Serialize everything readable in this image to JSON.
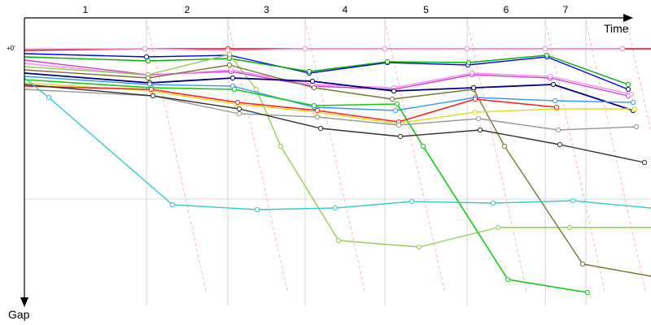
{
  "chart_data": {
    "type": "line",
    "x_label": "Time",
    "y_label": "Gap",
    "reference_label": "+0'",
    "laps": [
      "1",
      "2",
      "3",
      "4",
      "5",
      "6",
      "7"
    ],
    "lap_line_times": [
      180,
      280,
      375,
      473,
      574,
      670,
      720
    ],
    "timing_line_slope": 0.22,
    "timing_line_color": "#f7b3b3",
    "grid_color": "#cccccc",
    "y_gridline": 245,
    "x_range": [
      0,
      800
    ],
    "y_range": [
      0,
      400
    ],
    "series": [
      {
        "color": "#ff0000",
        "width": 1.6,
        "points": [
          [
            30,
            62
          ],
          [
            178,
            60
          ],
          [
            280,
            60
          ],
          [
            375,
            60
          ],
          [
            473,
            60
          ],
          [
            574,
            60
          ],
          [
            670,
            60
          ],
          [
            765,
            60
          ],
          [
            800,
            60
          ]
        ]
      },
      {
        "color": "#ff99dd",
        "width": 1.4,
        "points": [
          [
            30,
            60
          ],
          [
            178,
            60
          ],
          [
            280,
            62
          ],
          [
            375,
            60
          ],
          [
            473,
            60
          ],
          [
            574,
            60
          ],
          [
            670,
            60
          ],
          [
            765,
            60
          ]
        ]
      },
      {
        "color": "#0000ff",
        "width": 1.4,
        "points": [
          [
            30,
            66
          ],
          [
            180,
            70
          ],
          [
            282,
            68
          ],
          [
            380,
            90
          ],
          [
            476,
            77
          ],
          [
            575,
            80
          ],
          [
            672,
            70
          ],
          [
            772,
            110
          ]
        ]
      },
      {
        "color": "#00b000",
        "width": 1.4,
        "points": [
          [
            30,
            70
          ],
          [
            182,
            75
          ],
          [
            282,
            72
          ],
          [
            380,
            88
          ],
          [
            476,
            76
          ],
          [
            576,
            77
          ],
          [
            672,
            68
          ],
          [
            772,
            104
          ]
        ]
      },
      {
        "color": "#cc44cc",
        "width": 1.4,
        "points": [
          [
            30,
            74
          ],
          [
            182,
            92
          ],
          [
            284,
            88
          ],
          [
            384,
            106
          ],
          [
            484,
            110
          ],
          [
            580,
            92
          ],
          [
            676,
            96
          ],
          [
            772,
            118
          ]
        ]
      },
      {
        "color": "#ff88ff",
        "width": 1.4,
        "points": [
          [
            30,
            78
          ],
          [
            182,
            93
          ],
          [
            284,
            86
          ],
          [
            384,
            104
          ],
          [
            484,
            108
          ],
          [
            580,
            90
          ],
          [
            676,
            94
          ],
          [
            776,
            116
          ]
        ]
      },
      {
        "color": "#99cc55",
        "width": 1.4,
        "points": [
          [
            30,
            82
          ],
          [
            182,
            92
          ],
          [
            282,
            67
          ],
          [
            315,
            110
          ],
          [
            345,
            180
          ],
          [
            416,
            296
          ],
          [
            515,
            304
          ],
          [
            612,
            280
          ],
          [
            700,
            280
          ],
          [
            800,
            280
          ]
        ]
      },
      {
        "color": "#777733",
        "width": 1.4,
        "points": [
          [
            30,
            86
          ],
          [
            182,
            96
          ],
          [
            282,
            80
          ],
          [
            386,
            108
          ],
          [
            482,
            122
          ],
          [
            582,
            110
          ],
          [
            620,
            180
          ],
          [
            716,
            325
          ],
          [
            800,
            340
          ]
        ]
      },
      {
        "color": "#000080",
        "width": 1.8,
        "points": [
          [
            30,
            90
          ],
          [
            184,
            102
          ],
          [
            286,
            96
          ],
          [
            384,
            100
          ],
          [
            484,
            112
          ],
          [
            582,
            108
          ],
          [
            680,
            104
          ],
          [
            778,
            136
          ]
        ]
      },
      {
        "color": "#3399ff",
        "width": 1.4,
        "points": [
          [
            30,
            94
          ],
          [
            184,
            104
          ],
          [
            286,
            106
          ],
          [
            386,
            132
          ],
          [
            486,
            136
          ],
          [
            584,
            120
          ],
          [
            682,
            124
          ],
          [
            778,
            126
          ]
        ]
      },
      {
        "color": "#11cc11",
        "width": 1.6,
        "points": [
          [
            30,
            98
          ],
          [
            186,
            108
          ],
          [
            288,
            110
          ],
          [
            386,
            130
          ],
          [
            488,
            128
          ],
          [
            520,
            180
          ],
          [
            624,
            344
          ],
          [
            722,
            360
          ]
        ]
      },
      {
        "color": "#dddd22",
        "width": 1.4,
        "points": [
          [
            30,
            102
          ],
          [
            186,
            112
          ],
          [
            290,
            128
          ],
          [
            388,
            138
          ],
          [
            488,
            152
          ],
          [
            584,
            138
          ],
          [
            684,
            134
          ],
          [
            780,
            134
          ]
        ]
      },
      {
        "color": "#ff2222",
        "width": 1.6,
        "points": [
          [
            30,
            106
          ],
          [
            186,
            110
          ],
          [
            292,
            126
          ],
          [
            390,
            136
          ],
          [
            490,
            150
          ],
          [
            584,
            122
          ],
          [
            684,
            132
          ]
        ]
      },
      {
        "color": "#999999",
        "width": 1.4,
        "points": [
          [
            30,
            110
          ],
          [
            188,
            118
          ],
          [
            294,
            140
          ],
          [
            390,
            144
          ],
          [
            490,
            154
          ],
          [
            588,
            146
          ],
          [
            686,
            160
          ],
          [
            782,
            156
          ]
        ]
      },
      {
        "color": "#333333",
        "width": 1.4,
        "points": [
          [
            30,
            104
          ],
          [
            188,
            118
          ],
          [
            294,
            134
          ],
          [
            394,
            158
          ],
          [
            492,
            168
          ],
          [
            590,
            160
          ],
          [
            688,
            178
          ],
          [
            792,
            200
          ]
        ]
      },
      {
        "color": "#33cccc",
        "width": 1.4,
        "points": [
          [
            30,
            96
          ],
          [
            60,
            120
          ],
          [
            212,
            252
          ],
          [
            316,
            258
          ],
          [
            412,
            256
          ],
          [
            506,
            248
          ],
          [
            606,
            250
          ],
          [
            704,
            247
          ],
          [
            800,
            256
          ]
        ]
      }
    ]
  }
}
